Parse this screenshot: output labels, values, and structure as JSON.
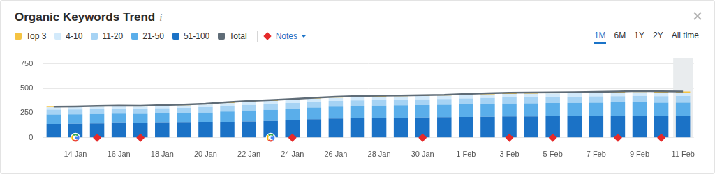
{
  "chart_data": {
    "type": "bar",
    "title": "Organic Keywords Trend",
    "info_icon": "i",
    "stacked": true,
    "grid": true,
    "legend": "top",
    "notes_label": "Notes",
    "range_buttons": [
      "1M",
      "6M",
      "1Y",
      "2Y",
      "All time"
    ],
    "selected_range": "1M",
    "categories": [
      null,
      "14 Jan",
      null,
      "16 Jan",
      null,
      "18 Jan",
      null,
      "20 Jan",
      null,
      "22 Jan",
      null,
      "24 Jan",
      null,
      "26 Jan",
      null,
      "28 Jan",
      null,
      "30 Jan",
      null,
      "1 Feb",
      null,
      "3 Feb",
      null,
      "5 Feb",
      null,
      "7 Feb",
      null,
      "9 Feb",
      null,
      "11 Feb"
    ],
    "series": [
      {
        "name": "Top 3",
        "color": "#f5c342",
        "values": [
          8,
          8,
          8,
          8,
          8,
          8,
          8,
          9,
          10,
          10,
          10,
          10,
          10,
          10,
          10,
          10,
          10,
          10,
          10,
          11,
          12,
          12,
          12,
          12,
          12,
          12,
          12,
          12,
          12,
          12
        ]
      },
      {
        "name": "4-10",
        "color": "#d3eafb",
        "values": [
          22,
          22,
          23,
          23,
          23,
          24,
          25,
          27,
          29,
          31,
          32,
          32,
          33,
          33,
          34,
          33,
          33,
          33,
          33,
          34,
          35,
          35,
          35,
          35,
          35,
          35,
          35,
          37,
          37,
          35
        ]
      },
      {
        "name": "11-20",
        "color": "#a6d3f4",
        "values": [
          50,
          50,
          50,
          50,
          50,
          52,
          52,
          54,
          56,
          57,
          58,
          56,
          56,
          57,
          57,
          57,
          57,
          58,
          58,
          60,
          61,
          61,
          62,
          62,
          62,
          62,
          62,
          66,
          66,
          66
        ]
      },
      {
        "name": "21-50",
        "color": "#5aaeea",
        "values": [
          95,
          95,
          96,
          96,
          95,
          97,
          98,
          100,
          105,
          110,
          112,
          115,
          118,
          120,
          122,
          123,
          124,
          125,
          126,
          128,
          130,
          132,
          133,
          134,
          135,
          136,
          137,
          138,
          137,
          137
        ]
      },
      {
        "name": "51-100",
        "color": "#1b72c6",
        "values": [
          140,
          142,
          145,
          148,
          147,
          150,
          152,
          155,
          160,
          165,
          170,
          180,
          188,
          195,
          200,
          202,
          204,
          206,
          208,
          210,
          212,
          215,
          216,
          217,
          218,
          220,
          222,
          220,
          218,
          219
        ]
      },
      {
        "name": "Total",
        "type": "line",
        "color": "#5f6c77",
        "values": [
          315,
          317,
          322,
          325,
          323,
          331,
          335,
          345,
          360,
          373,
          382,
          393,
          405,
          415,
          423,
          425,
          428,
          432,
          435,
          443,
          450,
          455,
          458,
          460,
          462,
          465,
          468,
          473,
          470,
          469
        ]
      }
    ],
    "notes": [
      false,
      false,
      true,
      false,
      true,
      false,
      false,
      false,
      false,
      false,
      false,
      true,
      false,
      false,
      false,
      false,
      false,
      true,
      false,
      false,
      false,
      true,
      false,
      true,
      false,
      false,
      true,
      false,
      true,
      false
    ],
    "google_updates": [
      false,
      true,
      false,
      false,
      false,
      false,
      false,
      false,
      false,
      false,
      true,
      false,
      false,
      false,
      false,
      false,
      false,
      false,
      false,
      false,
      false,
      false,
      false,
      false,
      false,
      false,
      false,
      false,
      false,
      false
    ],
    "ylim": [
      0,
      750
    ],
    "yticks": [
      0,
      250,
      500,
      750
    ]
  }
}
